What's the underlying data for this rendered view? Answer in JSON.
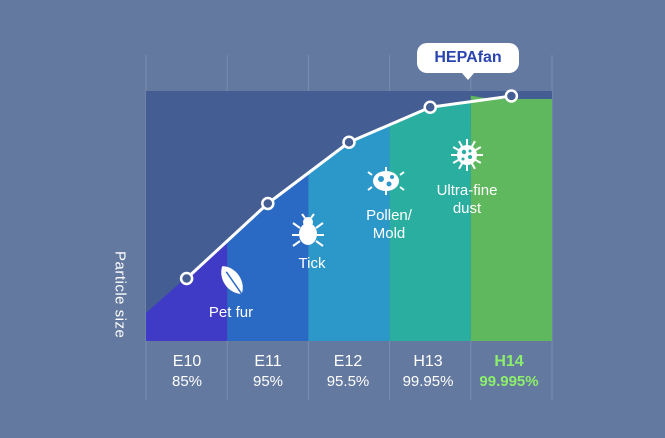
{
  "brand_tag": "HEPAfan",
  "chart_data": {
    "type": "area",
    "ylabel": "Particle size",
    "categories": [
      "E10",
      "E11",
      "E12",
      "H13",
      "H14"
    ],
    "efficiency_labels": [
      "85%",
      "95%",
      "95.5%",
      "99.95%",
      "99.995%"
    ],
    "highlight": "H14",
    "zone_labels": [
      "Pet fur",
      "Tick",
      "Pollen/\nMold",
      "Ultra-fine\ndust"
    ],
    "curve_levels": [
      0.25,
      0.55,
      0.795,
      0.935,
      0.98
    ],
    "colors": {
      "background": "#64799f",
      "band_bg": "#445d93",
      "zones": [
        "#3f3bc7",
        "#2b6ac4",
        "#2c97c9",
        "#2aaea0",
        "#5fb85d"
      ],
      "line": "#ffffff",
      "highlight_text": "#8cef6b"
    },
    "icons": [
      "leaf-icon",
      "tick-icon",
      "pollen-icon",
      "virus-icon"
    ]
  }
}
